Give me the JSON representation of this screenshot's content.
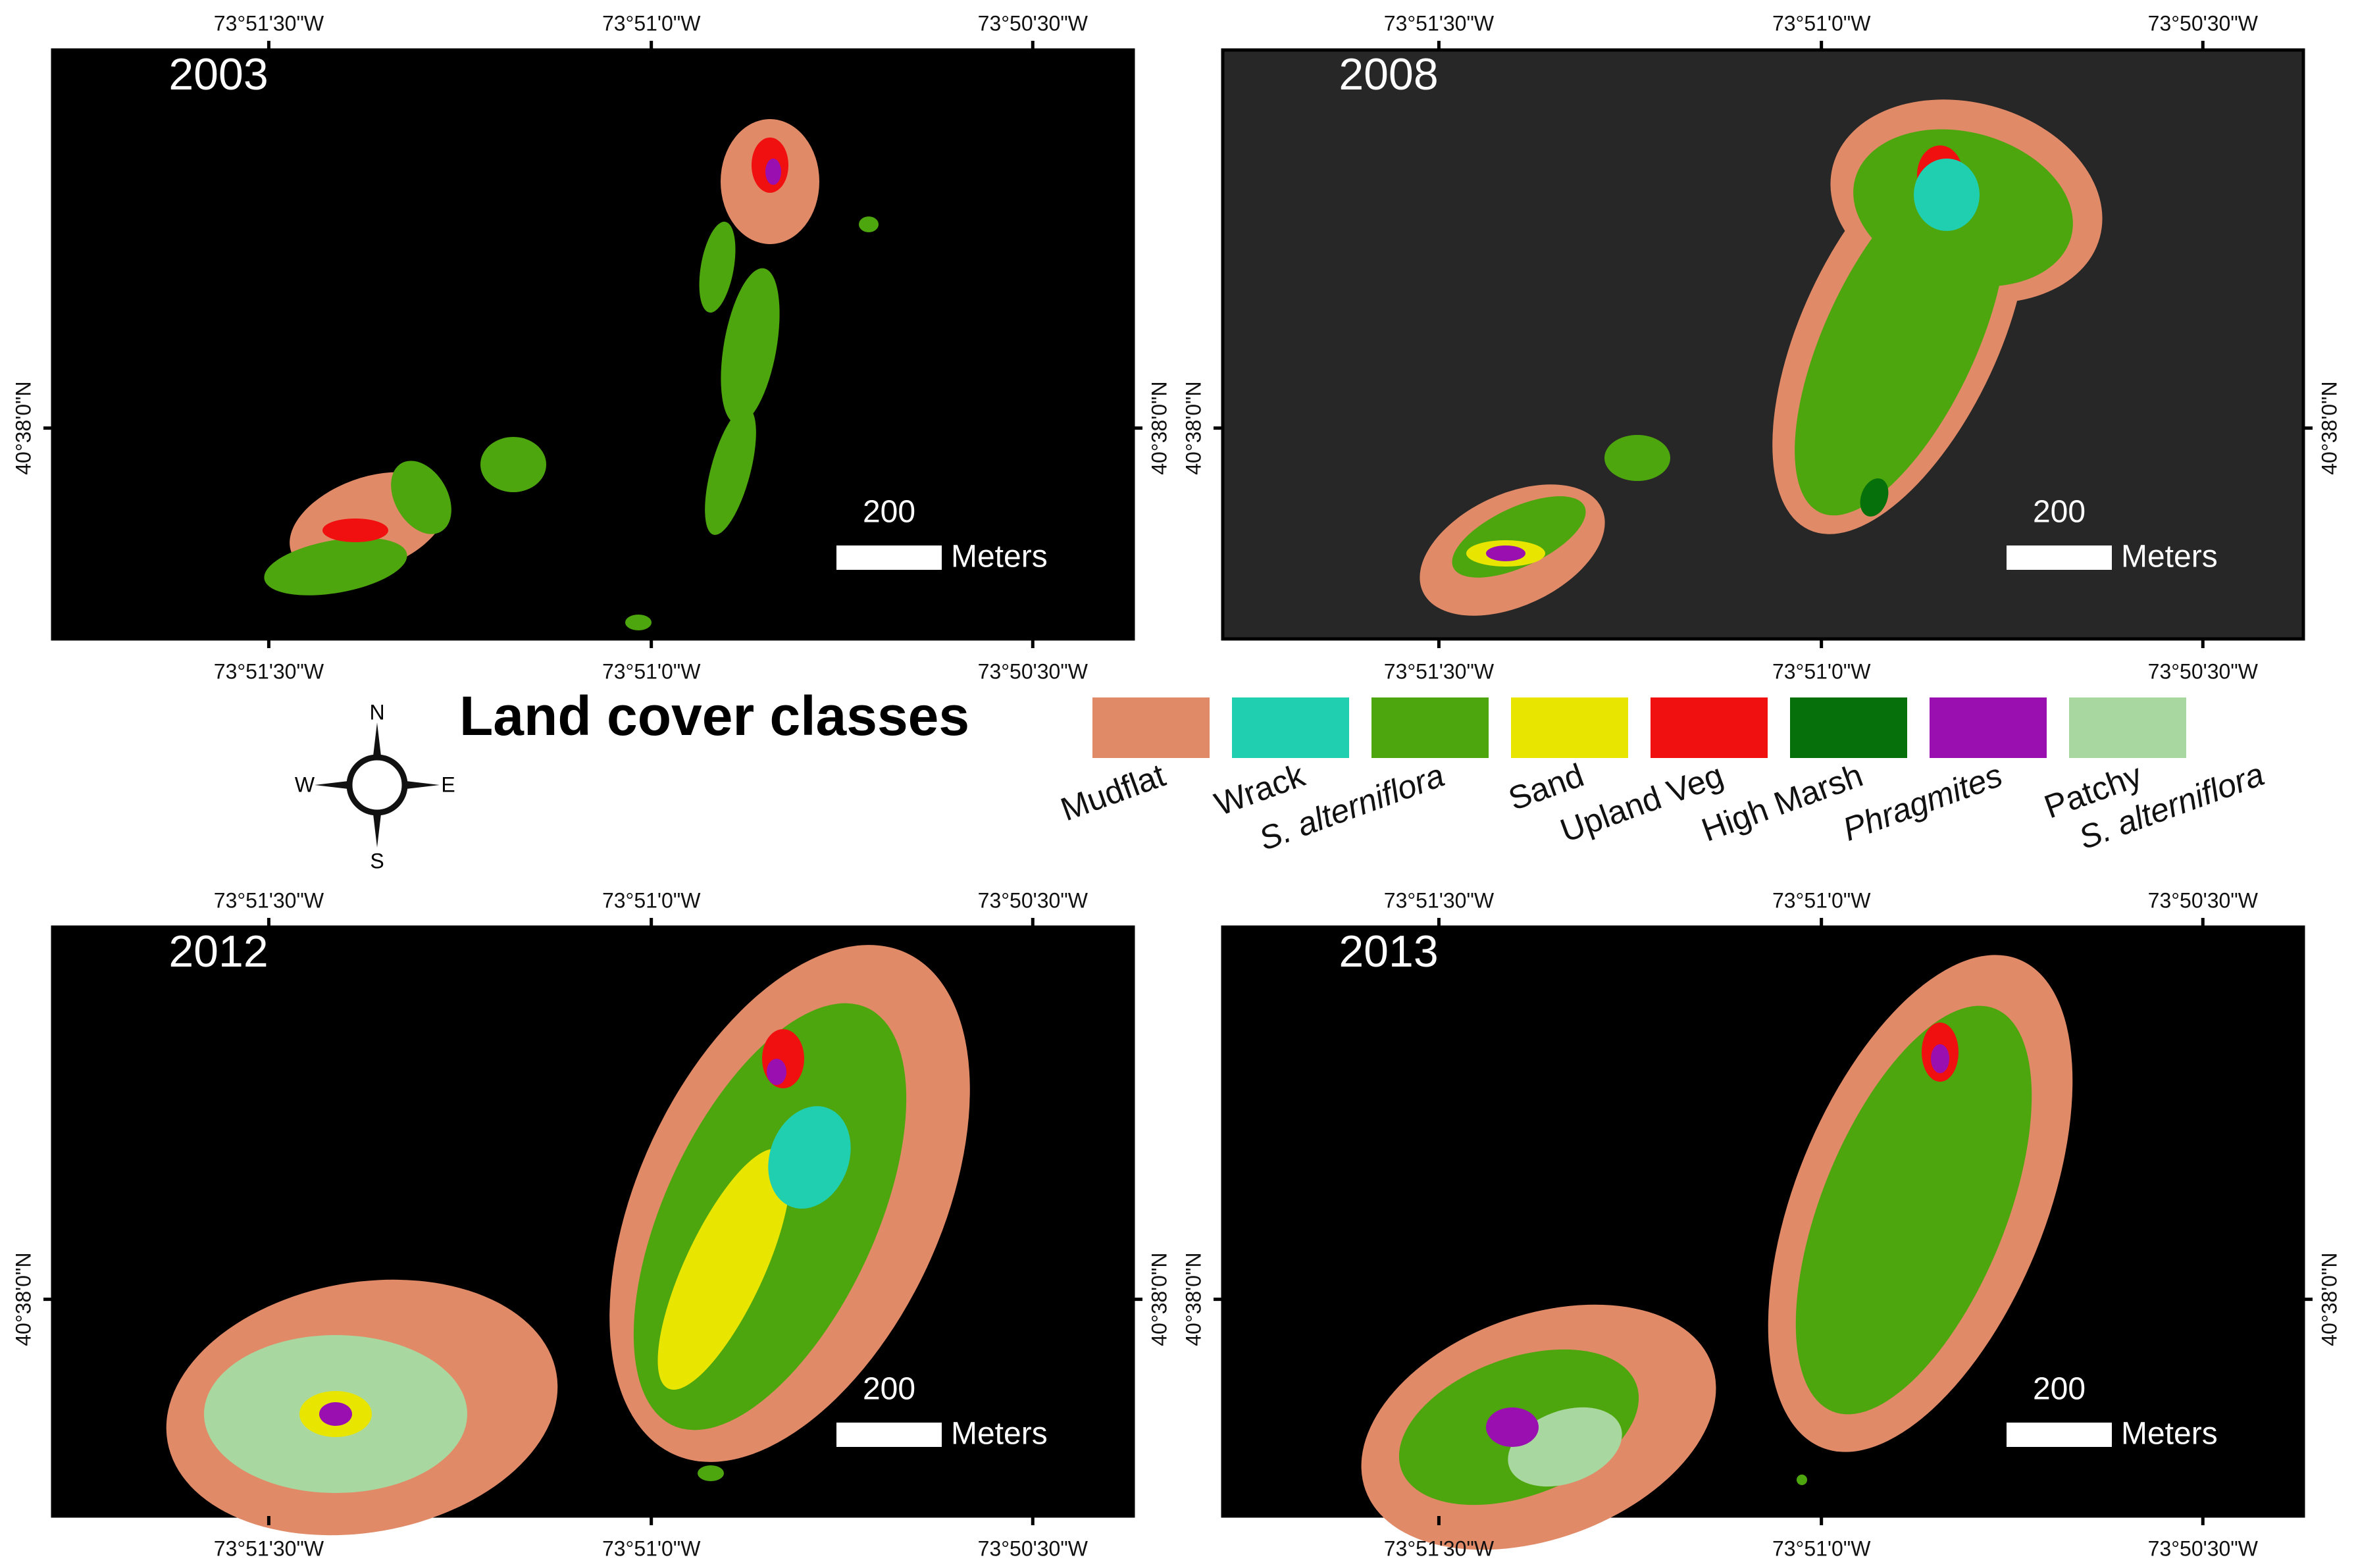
{
  "panels": [
    {
      "year": "2003",
      "scale_label": "200",
      "scale_unit": "Meters",
      "top_ticks": [
        "73°51'30\"W",
        "73°51'0\"W",
        "73°50'30\"W"
      ],
      "bottom_ticks": [
        "73°51'30\"W",
        "73°51'0\"W",
        "73°50'30\"W"
      ],
      "left_tick": "40°38'0\"N",
      "right_tick": "40°38'0\"N"
    },
    {
      "year": "2008",
      "scale_label": "200",
      "scale_unit": "Meters",
      "top_ticks": [
        "73°51'30\"W",
        "73°51'0\"W",
        "73°50'30\"W"
      ],
      "bottom_ticks": [
        "73°51'30\"W",
        "73°51'0\"W",
        "73°50'30\"W"
      ],
      "left_tick": "40°38'0\"N",
      "right_tick": "40°38'0\"N"
    },
    {
      "year": "2012",
      "scale_label": "200",
      "scale_unit": "Meters",
      "top_ticks": [
        "73°51'30\"W",
        "73°51'0\"W",
        "73°50'30\"W"
      ],
      "bottom_ticks": [
        "73°51'30\"W",
        "73°51'0\"W",
        "73°50'30\"W"
      ],
      "left_tick": "40°38'0\"N",
      "right_tick": "40°38'0\"N"
    },
    {
      "year": "2013",
      "scale_label": "200",
      "scale_unit": "Meters",
      "top_ticks": [
        "73°51'30\"W",
        "73°51'0\"W",
        "73°50'30\"W"
      ],
      "bottom_ticks": [
        "73°51'30\"W",
        "73°51'0\"W",
        "73°50'30\"W"
      ],
      "left_tick": "40°38'0\"N",
      "right_tick": "40°38'0\"N"
    }
  ],
  "legend": {
    "title": "Land cover classes",
    "classes": [
      {
        "lines": [
          "Mudflat"
        ],
        "color": "#e08a68",
        "italic": false
      },
      {
        "lines": [
          "Wrack"
        ],
        "color": "#1fcfb0",
        "italic": false
      },
      {
        "lines": [
          "S. alterniflora"
        ],
        "color": "#4ea60e",
        "italic": true
      },
      {
        "lines": [
          "Sand"
        ],
        "color": "#e8e600",
        "italic": false
      },
      {
        "lines": [
          "Upland Veg"
        ],
        "color": "#f01010",
        "italic": false
      },
      {
        "lines": [
          "High Marsh"
        ],
        "color": "#06700a",
        "italic": false
      },
      {
        "lines": [
          "Phragmites"
        ],
        "color": "#9a0fb0",
        "italic": true
      },
      {
        "lines": [
          "Patchy",
          "S. alterniflora"
        ],
        "color": "#a8d8a0",
        "italic": false
      }
    ]
  },
  "compass": {
    "north": "N",
    "south": "S",
    "east": "E",
    "west": "W"
  }
}
